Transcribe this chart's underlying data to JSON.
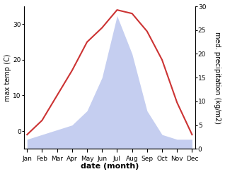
{
  "months": [
    "Jan",
    "Feb",
    "Mar",
    "Apr",
    "May",
    "Jun",
    "Jul",
    "Aug",
    "Sep",
    "Oct",
    "Nov",
    "Dec"
  ],
  "temperature": [
    -1,
    3,
    10,
    17,
    25,
    29,
    34,
    33,
    28,
    20,
    8,
    -1
  ],
  "precipitation": [
    2,
    3,
    4,
    5,
    8,
    15,
    28,
    20,
    8,
    3,
    2,
    2
  ],
  "temp_color": "#cc3333",
  "precip_color": "#c5cef0",
  "left_ylabel": "max temp (C)",
  "right_ylabel": "med. precipitation (kg/m2)",
  "xlabel": "date (month)",
  "ylim_left": [
    -5,
    35
  ],
  "ylim_right": [
    0,
    30
  ],
  "left_yticks": [
    0,
    10,
    20,
    30
  ],
  "right_yticks": [
    0,
    5,
    10,
    15,
    20,
    25,
    30
  ],
  "temp_linewidth": 1.5,
  "font_size_axis_label": 7,
  "font_size_xlabel": 8,
  "font_size_ticks": 6.5
}
